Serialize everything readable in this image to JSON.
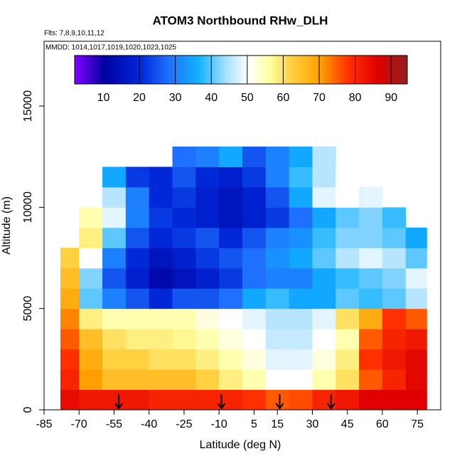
{
  "chart_data": {
    "type": "heatmap",
    "title": "ATOM3 Northbound RHw_DLH",
    "subtitle": "Flts: 7,8,9,10,11,12",
    "annotation": "MMDD: 1014,1017,1019,1020,1023,1025",
    "x_label": "Latitude (deg N)",
    "y_label": "Altitude (m)",
    "xlim": [
      -85,
      85
    ],
    "xticks": [
      -85,
      -70,
      -55,
      -40,
      -25,
      -10,
      5,
      15,
      30,
      45,
      60,
      75
    ],
    "ylim": [
      0,
      18200
    ],
    "yticks": [
      0,
      5000,
      10000,
      15000
    ],
    "x_edges": [
      -78,
      -70,
      -60,
      -50,
      -40,
      -30,
      -20,
      -10,
      0,
      10,
      20,
      30,
      40,
      50,
      60,
      70,
      79
    ],
    "y_edges": [
      0,
      1000,
      2000,
      3000,
      4000,
      5000,
      6000,
      7000,
      8000,
      9000,
      10000,
      11000,
      12000,
      13000
    ],
    "z": [
      [
        84,
        82,
        82,
        82,
        80,
        80,
        80,
        80,
        78,
        75,
        76,
        80,
        82,
        86,
        86,
        86
      ],
      [
        80,
        70,
        65,
        65,
        65,
        65,
        62,
        58,
        55,
        50,
        50,
        55,
        60,
        75,
        80,
        85
      ],
      [
        78,
        68,
        62,
        62,
        60,
        60,
        58,
        55,
        52,
        48,
        48,
        52,
        58,
        78,
        82,
        85
      ],
      [
        75,
        65,
        60,
        58,
        58,
        57,
        55,
        52,
        50,
        46,
        46,
        50,
        55,
        75,
        80,
        82
      ],
      [
        72,
        58,
        55,
        55,
        55,
        55,
        52,
        50,
        48,
        45,
        45,
        48,
        60,
        68,
        78,
        75
      ],
      [
        68,
        40,
        30,
        25,
        20,
        25,
        25,
        28,
        35,
        38,
        35,
        35,
        40,
        38,
        40,
        45
      ],
      [
        65,
        42,
        25,
        18,
        12,
        15,
        18,
        22,
        28,
        30,
        30,
        35,
        38,
        40,
        42,
        48
      ],
      [
        62,
        50,
        30,
        20,
        15,
        18,
        22,
        25,
        28,
        32,
        35,
        40,
        45,
        48,
        45,
        40
      ],
      [
        null,
        58,
        40,
        25,
        20,
        22,
        25,
        20,
        25,
        30,
        32,
        38,
        42,
        42,
        40,
        35
      ],
      [
        null,
        55,
        48,
        30,
        22,
        20,
        18,
        15,
        18,
        22,
        28,
        35,
        40,
        42,
        38,
        null
      ],
      [
        null,
        null,
        45,
        30,
        20,
        22,
        18,
        15,
        18,
        25,
        35,
        48,
        50,
        48,
        null,
        null
      ],
      [
        null,
        null,
        35,
        22,
        20,
        25,
        20,
        18,
        22,
        30,
        38,
        45,
        50,
        null,
        null,
        null
      ],
      [
        null,
        null,
        null,
        null,
        null,
        28,
        30,
        35,
        25,
        30,
        35,
        45,
        null,
        null,
        null,
        null
      ]
    ],
    "arrows": [
      -53,
      -9,
      16,
      38
    ],
    "clim": [
      2,
      94.5
    ],
    "cticks": [
      10,
      20,
      30,
      40,
      50,
      60,
      70,
      80,
      90
    ],
    "colorscale": [
      [
        2,
        "#7f00ff"
      ],
      [
        10,
        "#0000a0"
      ],
      [
        20,
        "#0028d8"
      ],
      [
        28,
        "#2070ff"
      ],
      [
        36,
        "#10b0ff"
      ],
      [
        44,
        "#a8e0ff"
      ],
      [
        50,
        "#ffffff"
      ],
      [
        56,
        "#ffffa0"
      ],
      [
        62,
        "#ffd040"
      ],
      [
        70,
        "#ffa000"
      ],
      [
        78,
        "#ff3000"
      ],
      [
        86,
        "#e00000"
      ],
      [
        94.5,
        "#902020"
      ]
    ]
  }
}
